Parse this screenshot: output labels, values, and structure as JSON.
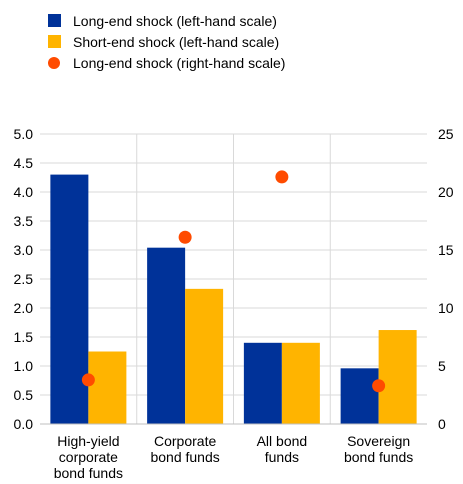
{
  "chart_data": {
    "type": "bar",
    "categories": [
      [
        "High-yield",
        "corporate",
        "bond funds"
      ],
      [
        "Corporate",
        "bond funds"
      ],
      [
        "All bond",
        "funds"
      ],
      [
        "Sovereign",
        "bond funds"
      ]
    ],
    "series": [
      {
        "name": "Long-end shock (left-hand scale)",
        "kind": "bar",
        "axis": "left",
        "color": "#003299",
        "values": [
          4.3,
          3.04,
          1.4,
          0.96
        ]
      },
      {
        "name": "Short-end shock (left-hand scale)",
        "kind": "bar",
        "axis": "left",
        "color": "#FFB400",
        "values": [
          1.25,
          2.33,
          1.4,
          1.62
        ]
      },
      {
        "name": "Long-end shock (right-hand scale)",
        "kind": "dot",
        "axis": "right",
        "color": "#FF4B00",
        "values": [
          3.8,
          16.1,
          21.3,
          3.3
        ]
      }
    ],
    "left_axis": {
      "min": 0,
      "max": 5.0,
      "ticks": [
        "0.0",
        "0.5",
        "1.0",
        "1.5",
        "2.0",
        "2.5",
        "3.0",
        "3.5",
        "4.0",
        "4.5",
        "5.0"
      ]
    },
    "right_axis": {
      "min": 0,
      "max": 25,
      "ticks": [
        "0",
        "5",
        "10",
        "15",
        "20",
        "25"
      ]
    },
    "legend_position": "top-left",
    "grid": "horizontal"
  }
}
